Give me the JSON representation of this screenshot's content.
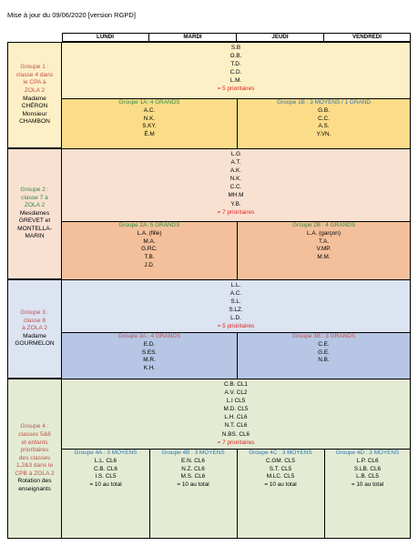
{
  "title": "Mise à jour du 09/06/2020 [version RGPD]",
  "days": [
    "LUNDI",
    "MARDI",
    "JEUDI",
    "VENDREDI"
  ],
  "groups": [
    {
      "left_title": [
        "Groupe 1 :",
        "classe 4 dans",
        "le CPA à",
        "ZOLA 2"
      ],
      "left_teacher": [
        "Madame",
        "CHÉRON",
        "Monsieur",
        "CHAMBON"
      ],
      "top_names": [
        "S.B",
        "O.B.",
        "T.D.",
        "C.D.",
        "L.M."
      ],
      "priority": "= 5 prioritaires",
      "subgroups": [
        {
          "title": "Groupe 1A: 4 GRANDS",
          "names": [
            "A.C.",
            "N.K.",
            "S.KY.",
            "É.M"
          ]
        },
        {
          "title": "Groupe 1B : 3 MOYENS / 1 GRAND",
          "names": [
            "G.B.",
            "C.C.",
            "A.S.",
            "Y.VN."
          ]
        }
      ]
    },
    {
      "left_title": [
        "Groupe 2 :",
        "classe 7 à",
        "ZOLA 2"
      ],
      "left_teacher": [
        "Mesdames",
        "GREVET et",
        "MONTELLA-",
        "MARIN"
      ],
      "top_names": [
        "L.G",
        "A.T.",
        "A.K.",
        "N.K.",
        "C.C.",
        "MH.M",
        "Y.B."
      ],
      "priority": "= 7 prioritaires",
      "subgroups": [
        {
          "title": "Groupe 2A: 5 GRANDS",
          "names": [
            "L.A. (fille)",
            "M.A.",
            "G.RC.",
            "T.B.",
            "J.D."
          ]
        },
        {
          "title": "Groupe 2B : 4 GRANDS",
          "names": [
            "L.A. (garçon)",
            "T.A.",
            "V.MP.",
            "M.M."
          ]
        }
      ]
    },
    {
      "left_title": [
        "Groupe 3 :",
        "classe 8",
        "à ZOLA 2"
      ],
      "left_teacher": [
        "Madame",
        "GOURMELON"
      ],
      "top_names": [
        "L.L.",
        "A.C.",
        "S.L.",
        "S.LZ.",
        "L.D."
      ],
      "priority": "= 5 prioritaires",
      "subgroups": [
        {
          "title": "Groupe 3A : 4 GRANDS",
          "names": [
            "E.D.",
            "S.ES.",
            "M.R.",
            "K.H."
          ]
        },
        {
          "title": "Groupe 3B : 3 GRANDS",
          "names": [
            "C.E.",
            "G.E.",
            "N.B."
          ]
        }
      ]
    },
    {
      "left_title": [
        "Groupe 4 :",
        "classes 5&6",
        "et enfants",
        "prioritaires",
        "des classes",
        "1,2&3 dans le",
        "CPB à ZOLA 2"
      ],
      "left_teacher": [
        "Rotation des",
        "enseignants"
      ],
      "top_names": [
        "C.B. CL1",
        "A.V. CL2",
        "L.I CL5",
        "M.D. CL5",
        "L.H. CL6",
        "N.T. CL6",
        "N.BS. CL6"
      ],
      "priority": "= 7 prioritaires",
      "subgroups": [
        {
          "title": "Groupe 4A : 3 MOYENS",
          "names": [
            "L.L. CL6",
            "C.B. CL6",
            "I.S. CL5",
            "= 10 au total"
          ]
        },
        {
          "title": "Groupe 4B : 3 MOYENS",
          "names": [
            "E.N. CL6",
            "N.Z. CL6",
            "M.S. CL6",
            "= 10 au total"
          ]
        },
        {
          "title": "Groupe 4C : 3 MOYENS",
          "names": [
            "C.GM. CL5",
            "S.T. CL5",
            "M.LC. CL5",
            "= 10 au total"
          ]
        },
        {
          "title": "Groupe 4D : 3 MOYENS",
          "names": [
            "L.P. CL6",
            "S.LB. CL6",
            "L.B. CL5",
            "= 10 au total"
          ]
        }
      ]
    }
  ],
  "colors": {
    "g1_bg": "#fdf0c6",
    "g1_sub_bg": "#fbdc88",
    "g2_bg": "#f9e1d2",
    "g2_sub_bg": "#f4c09b",
    "g3_bg": "#dce3f1",
    "g3_sub_bg": "#b6c6e4",
    "g4_bg": "#e3ecd3"
  }
}
